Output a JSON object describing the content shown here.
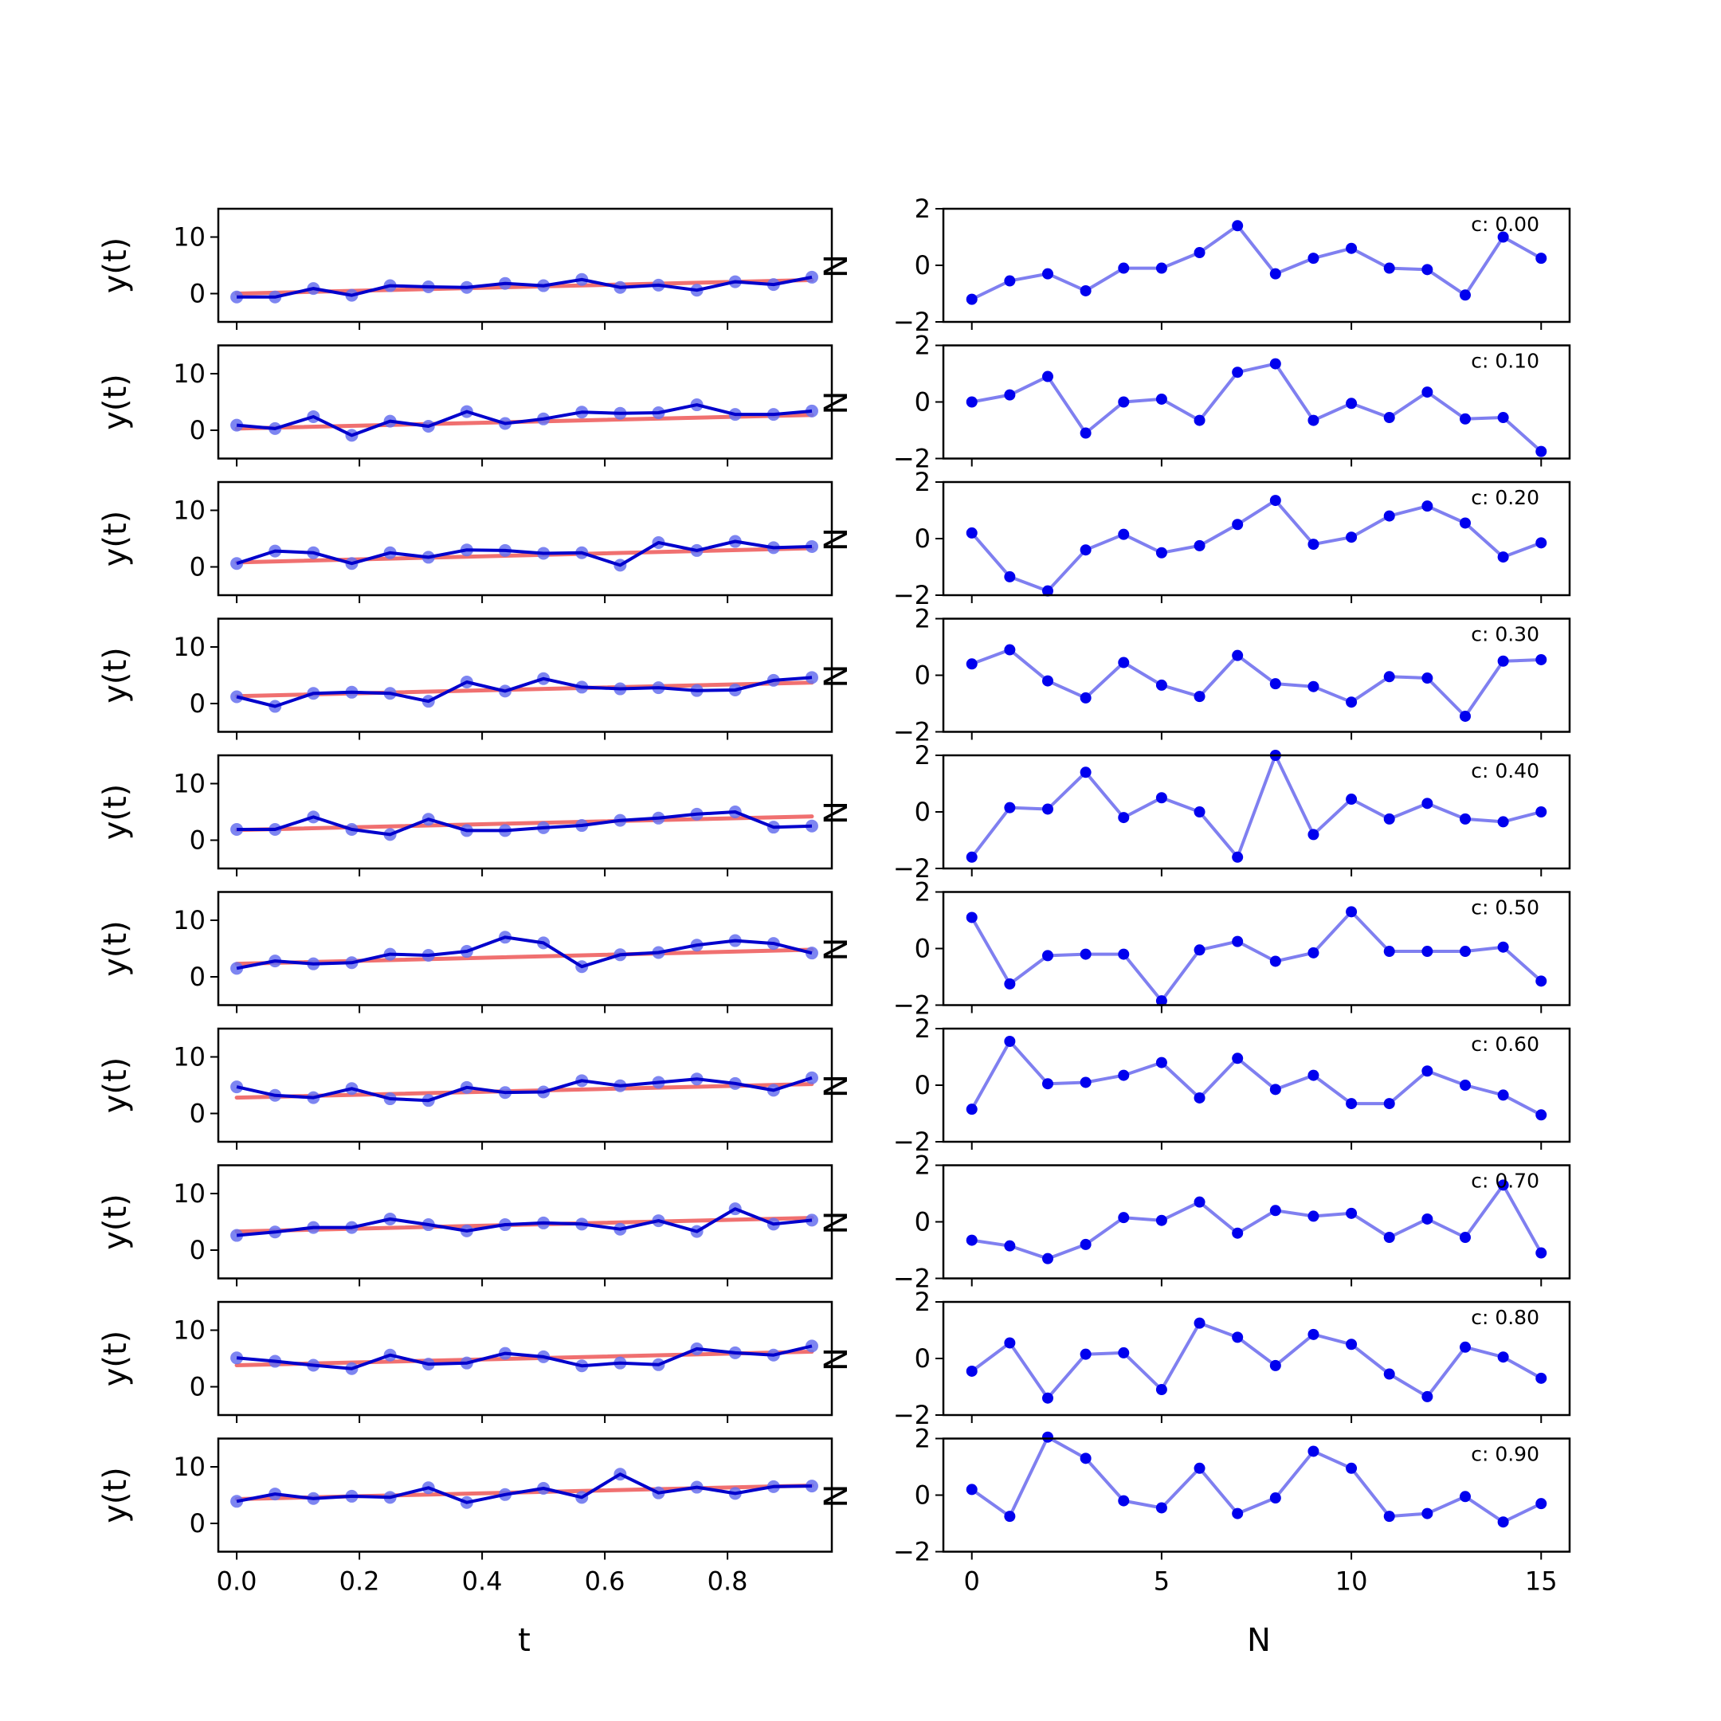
{
  "figure": {
    "left_xlabel": "t",
    "right_xlabel": "N",
    "left_ylabel": "y(t)",
    "right_ylabel": "N",
    "left_xticks": [
      "0.0",
      "0.2",
      "0.4",
      "0.6",
      "0.8"
    ],
    "left_yticks": [
      "0",
      "10"
    ],
    "right_xticks": [
      "0",
      "5",
      "10",
      "15"
    ],
    "right_yticks": [
      "−2",
      "0",
      "2"
    ]
  },
  "colors": {
    "data_line": "#0000cc",
    "data_points": "#6670ee",
    "trend_line": "#f07070",
    "residual_line": "#7f7ff0",
    "residual_points": "#0000ee"
  },
  "chart_data": [
    {
      "type": "line",
      "panel": "left",
      "xlabel": "t",
      "ylabel": "y(t)",
      "xlim": [
        -0.03,
        0.97
      ],
      "ylim": [
        -5,
        15
      ],
      "rows": [
        {
          "label": "",
          "x": [
            0.0,
            0.0625,
            0.125,
            0.1875,
            0.25,
            0.3125,
            0.375,
            0.4375,
            0.5,
            0.5625,
            0.625,
            0.6875,
            0.75,
            0.8125,
            0.875,
            0.9375
          ],
          "y": [
            -0.6,
            -0.6,
            0.9,
            -0.3,
            1.4,
            1.2,
            1.1,
            1.8,
            1.4,
            2.5,
            1.1,
            1.5,
            0.6,
            2.1,
            1.6,
            2.9
          ],
          "trend": [
            0.0,
            2.4
          ]
        },
        {
          "label": "",
          "x": [
            0.0,
            0.0625,
            0.125,
            0.1875,
            0.25,
            0.3125,
            0.375,
            0.4375,
            0.5,
            0.5625,
            0.625,
            0.6875,
            0.75,
            0.8125,
            0.875,
            0.9375
          ],
          "y": [
            0.9,
            0.3,
            2.4,
            -0.9,
            1.6,
            0.7,
            3.3,
            1.2,
            2.0,
            3.2,
            3.0,
            3.1,
            4.5,
            2.8,
            2.8,
            3.4
          ],
          "trend": [
            0.3,
            2.7
          ]
        },
        {
          "label": "",
          "x": [
            0.0,
            0.0625,
            0.125,
            0.1875,
            0.25,
            0.3125,
            0.375,
            0.4375,
            0.5,
            0.5625,
            0.625,
            0.6875,
            0.75,
            0.8125,
            0.875,
            0.9375
          ],
          "y": [
            0.6,
            2.8,
            2.5,
            0.6,
            2.5,
            1.7,
            3.0,
            2.9,
            2.4,
            2.5,
            0.3,
            4.3,
            2.9,
            4.5,
            3.4,
            3.6
          ],
          "trend": [
            0.8,
            3.3
          ]
        },
        {
          "label": "",
          "x": [
            0.0,
            0.0625,
            0.125,
            0.1875,
            0.25,
            0.3125,
            0.375,
            0.4375,
            0.5,
            0.5625,
            0.625,
            0.6875,
            0.75,
            0.8125,
            0.875,
            0.9375
          ],
          "y": [
            1.2,
            -0.5,
            1.8,
            2.0,
            1.8,
            0.4,
            3.8,
            2.2,
            4.4,
            2.9,
            2.6,
            2.8,
            2.3,
            2.4,
            4.1,
            4.6
          ],
          "trend": [
            1.3,
            3.7
          ]
        },
        {
          "label": "",
          "x": [
            0.0,
            0.0625,
            0.125,
            0.1875,
            0.25,
            0.3125,
            0.375,
            0.4375,
            0.5,
            0.5625,
            0.625,
            0.6875,
            0.75,
            0.8125,
            0.875,
            0.9375
          ],
          "y": [
            1.9,
            1.9,
            4.1,
            1.9,
            1.0,
            3.7,
            1.7,
            1.7,
            2.2,
            2.6,
            3.5,
            3.9,
            4.6,
            5.0,
            2.3,
            2.5
          ],
          "trend": [
            1.8,
            4.2
          ]
        },
        {
          "label": "",
          "x": [
            0.0,
            0.0625,
            0.125,
            0.1875,
            0.25,
            0.3125,
            0.375,
            0.4375,
            0.5,
            0.5625,
            0.625,
            0.6875,
            0.75,
            0.8125,
            0.875,
            0.9375
          ],
          "y": [
            1.5,
            2.8,
            2.3,
            2.5,
            4.0,
            3.8,
            4.5,
            7.0,
            6.0,
            1.8,
            3.9,
            4.3,
            5.6,
            6.4,
            5.9,
            4.2
          ],
          "trend": [
            2.3,
            4.8
          ]
        },
        {
          "label": "",
          "x": [
            0.0,
            0.0625,
            0.125,
            0.1875,
            0.25,
            0.3125,
            0.375,
            0.4375,
            0.5,
            0.5625,
            0.625,
            0.6875,
            0.75,
            0.8125,
            0.875,
            0.9375
          ],
          "y": [
            4.7,
            3.2,
            2.8,
            4.4,
            2.6,
            2.3,
            4.6,
            3.7,
            3.8,
            5.8,
            4.9,
            5.5,
            6.1,
            5.3,
            4.1,
            6.3
          ],
          "trend": [
            2.8,
            5.2
          ]
        },
        {
          "label": "",
          "x": [
            0.0,
            0.0625,
            0.125,
            0.1875,
            0.25,
            0.3125,
            0.375,
            0.4375,
            0.5,
            0.5625,
            0.625,
            0.6875,
            0.75,
            0.8125,
            0.875,
            0.9375
          ],
          "y": [
            2.6,
            3.2,
            4.0,
            4.0,
            5.5,
            4.5,
            3.4,
            4.5,
            4.8,
            4.6,
            3.7,
            5.2,
            3.3,
            7.3,
            4.6,
            5.3
          ],
          "trend": [
            3.3,
            5.7
          ]
        },
        {
          "label": "",
          "x": [
            0.0,
            0.0625,
            0.125,
            0.1875,
            0.25,
            0.3125,
            0.375,
            0.4375,
            0.5,
            0.5625,
            0.625,
            0.6875,
            0.75,
            0.8125,
            0.875,
            0.9375
          ],
          "y": [
            5.1,
            4.5,
            3.8,
            3.2,
            5.6,
            4.0,
            4.2,
            5.9,
            5.3,
            3.7,
            4.2,
            3.9,
            6.7,
            6.0,
            5.6,
            7.2
          ],
          "trend": [
            3.8,
            6.2
          ]
        },
        {
          "label": "",
          "x": [
            0.0,
            0.0625,
            0.125,
            0.1875,
            0.25,
            0.3125,
            0.375,
            0.4375,
            0.5,
            0.5625,
            0.625,
            0.6875,
            0.75,
            0.8125,
            0.875,
            0.9375
          ],
          "y": [
            3.9,
            5.2,
            4.4,
            4.8,
            4.6,
            6.3,
            3.7,
            5.1,
            6.2,
            4.6,
            8.7,
            5.4,
            6.4,
            5.3,
            6.5,
            6.6
          ],
          "trend": [
            4.3,
            6.7
          ]
        }
      ]
    },
    {
      "type": "line",
      "panel": "right",
      "xlabel": "N",
      "ylabel": "N",
      "xlim": [
        -0.75,
        15.75
      ],
      "ylim": [
        -2,
        2
      ],
      "rows": [
        {
          "label": "c: 0.00",
          "x": [
            0,
            1,
            2,
            3,
            4,
            5,
            6,
            7,
            8,
            9,
            10,
            11,
            12,
            13,
            14,
            15
          ],
          "y": [
            -1.2,
            -0.55,
            -0.3,
            -0.9,
            -0.1,
            -0.1,
            0.45,
            1.4,
            -0.3,
            0.25,
            0.6,
            -0.1,
            -0.15,
            -1.05,
            1.0,
            0.25
          ]
        },
        {
          "label": "c: 0.10",
          "x": [
            0,
            1,
            2,
            3,
            4,
            5,
            6,
            7,
            8,
            9,
            10,
            11,
            12,
            13,
            14,
            15
          ],
          "y": [
            0.0,
            0.25,
            0.9,
            -1.1,
            0.0,
            0.1,
            -0.65,
            1.05,
            1.35,
            -0.65,
            -0.05,
            -0.55,
            0.35,
            -0.6,
            -0.55,
            -1.75
          ]
        },
        {
          "label": "c: 0.20",
          "x": [
            0,
            1,
            2,
            3,
            4,
            5,
            6,
            7,
            8,
            9,
            10,
            11,
            12,
            13,
            14,
            15
          ],
          "y": [
            0.2,
            -1.35,
            -1.85,
            -0.4,
            0.15,
            -0.5,
            -0.25,
            0.5,
            1.35,
            -0.2,
            0.05,
            0.8,
            1.15,
            0.55,
            -0.65,
            -0.15
          ]
        },
        {
          "label": "c: 0.30",
          "x": [
            0,
            1,
            2,
            3,
            4,
            5,
            6,
            7,
            8,
            9,
            10,
            11,
            12,
            13,
            14,
            15
          ],
          "y": [
            0.4,
            0.9,
            -0.2,
            -0.8,
            0.45,
            -0.35,
            -0.75,
            0.7,
            -0.3,
            -0.4,
            -0.95,
            -0.05,
            -0.1,
            -1.45,
            0.5,
            0.55
          ]
        },
        {
          "label": "c: 0.40",
          "x": [
            0,
            1,
            2,
            3,
            4,
            5,
            6,
            7,
            8,
            9,
            10,
            11,
            12,
            13,
            14,
            15
          ],
          "y": [
            -1.6,
            0.15,
            0.1,
            1.4,
            -0.2,
            0.5,
            0.0,
            -1.6,
            2.0,
            -0.8,
            0.45,
            -0.25,
            0.3,
            -0.25,
            -0.35,
            0.0
          ]
        },
        {
          "label": "c: 0.50",
          "x": [
            0,
            1,
            2,
            3,
            4,
            5,
            6,
            7,
            8,
            9,
            10,
            11,
            12,
            13,
            14,
            15
          ],
          "y": [
            1.1,
            -1.25,
            -0.25,
            -0.2,
            -0.2,
            -1.85,
            -0.05,
            0.25,
            -0.45,
            -0.15,
            1.3,
            -0.1,
            -0.1,
            -0.1,
            0.05,
            -1.15
          ]
        },
        {
          "label": "c: 0.60",
          "x": [
            0,
            1,
            2,
            3,
            4,
            5,
            6,
            7,
            8,
            9,
            10,
            11,
            12,
            13,
            14,
            15
          ],
          "y": [
            -0.85,
            1.55,
            0.05,
            0.1,
            0.35,
            0.8,
            -0.45,
            0.95,
            -0.15,
            0.35,
            -0.65,
            -0.65,
            0.5,
            0.0,
            -0.35,
            -1.05
          ]
        },
        {
          "label": "c: 0.70",
          "x": [
            0,
            1,
            2,
            3,
            4,
            5,
            6,
            7,
            8,
            9,
            10,
            11,
            12,
            13,
            14,
            15
          ],
          "y": [
            -0.65,
            -0.85,
            -1.3,
            -0.8,
            0.15,
            0.05,
            0.7,
            -0.4,
            0.4,
            0.2,
            0.3,
            -0.55,
            0.1,
            -0.55,
            1.3,
            -1.1
          ]
        },
        {
          "label": "c: 0.80",
          "x": [
            0,
            1,
            2,
            3,
            4,
            5,
            6,
            7,
            8,
            9,
            10,
            11,
            12,
            13,
            14,
            15
          ],
          "y": [
            -0.45,
            0.55,
            -1.4,
            0.15,
            0.2,
            -1.1,
            1.25,
            0.75,
            -0.25,
            0.85,
            0.5,
            -0.55,
            -1.35,
            0.4,
            0.05,
            -0.7
          ]
        },
        {
          "label": "c: 0.90",
          "x": [
            0,
            1,
            2,
            3,
            4,
            5,
            6,
            7,
            8,
            9,
            10,
            11,
            12,
            13,
            14,
            15
          ],
          "y": [
            0.2,
            -0.75,
            2.05,
            1.3,
            -0.2,
            -0.45,
            0.95,
            -0.65,
            -0.1,
            1.55,
            0.95,
            -0.75,
            -0.65,
            -0.05,
            -0.95,
            -0.3
          ]
        }
      ]
    }
  ]
}
